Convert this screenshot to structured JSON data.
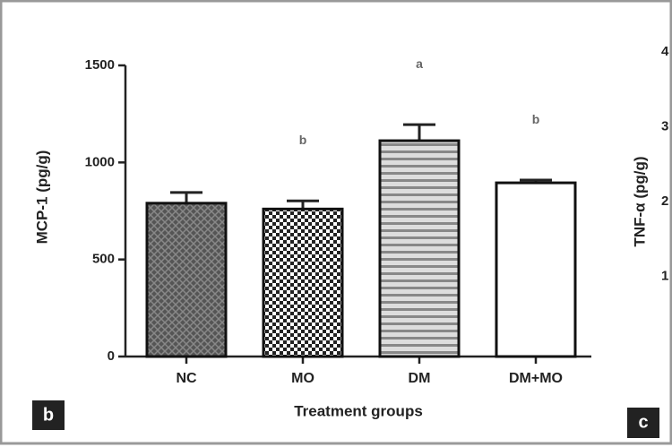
{
  "chart_data": [
    {
      "type": "bar",
      "panel": "b",
      "ylabel": "MCP-1 (pg/g)",
      "xlabel": "Treatment groups",
      "categories": [
        "NC",
        "MO",
        "DM",
        "DM+MO"
      ],
      "values": [
        790,
        760,
        1112,
        895
      ],
      "errors": [
        55,
        42,
        83,
        14
      ],
      "annotations": [
        null,
        "b",
        "a",
        "b"
      ],
      "ylim": [
        0,
        1500
      ],
      "yticks": [
        0,
        500,
        1000,
        1500
      ]
    },
    {
      "type": "bar",
      "panel": "c",
      "ylabel": "TNF-α (pg/g)",
      "ylim": [
        0,
        4
      ],
      "yticks": [
        1,
        2,
        3,
        4
      ]
    }
  ]
}
